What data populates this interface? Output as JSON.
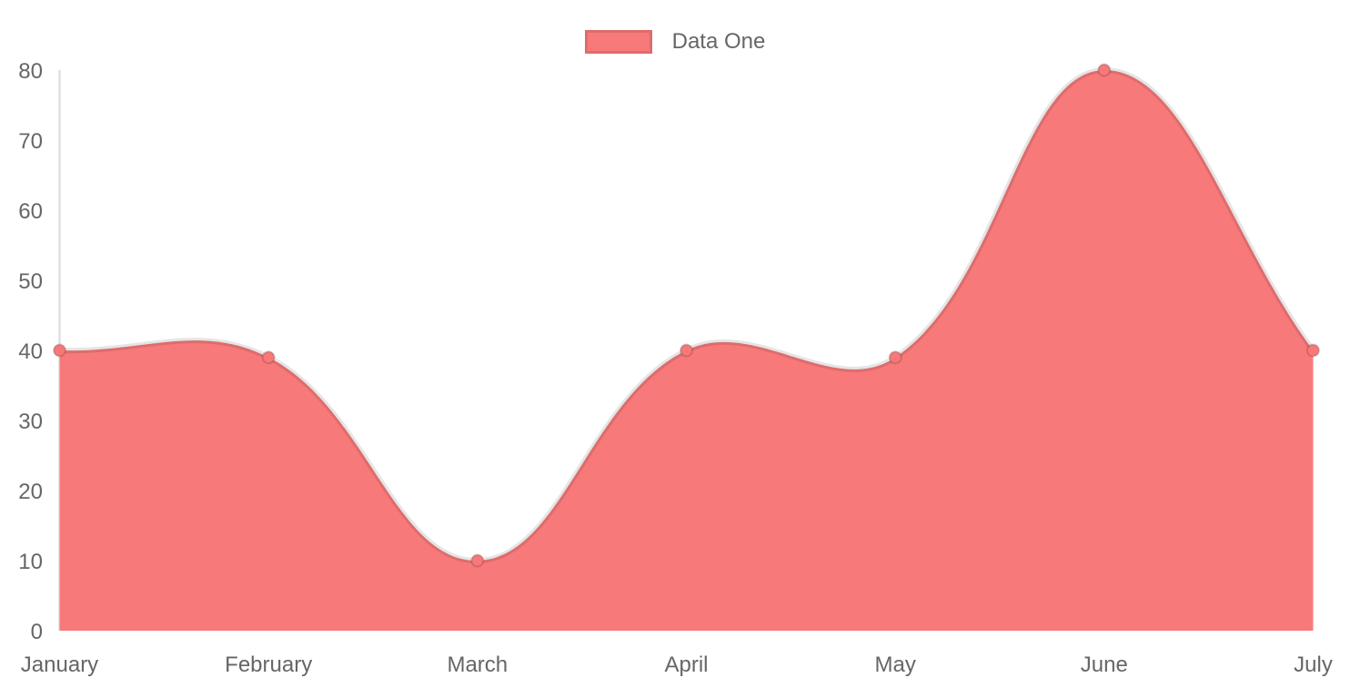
{
  "chart_data": {
    "type": "area",
    "title": "",
    "xlabel": "",
    "ylabel": "",
    "categories": [
      "January",
      "February",
      "March",
      "April",
      "May",
      "June",
      "July"
    ],
    "series": [
      {
        "name": "Data One",
        "values": [
          40,
          39,
          10,
          40,
          39,
          80,
          40
        ]
      }
    ],
    "ylim": [
      0,
      80
    ],
    "yticks": [
      0,
      10,
      20,
      30,
      40,
      50,
      60,
      70,
      80
    ],
    "grid": false,
    "legend_position": "top",
    "line_tension": 0.4,
    "colors": {
      "fill": "#f87979",
      "line": "#0000001a",
      "point_fill": "#f87979",
      "point_border": "#00000026",
      "axis_line": "#0000001f",
      "tick_text": "#666666",
      "legend_text": "#666666",
      "legend_border": "#0000001a",
      "background": "#ffffff"
    }
  }
}
